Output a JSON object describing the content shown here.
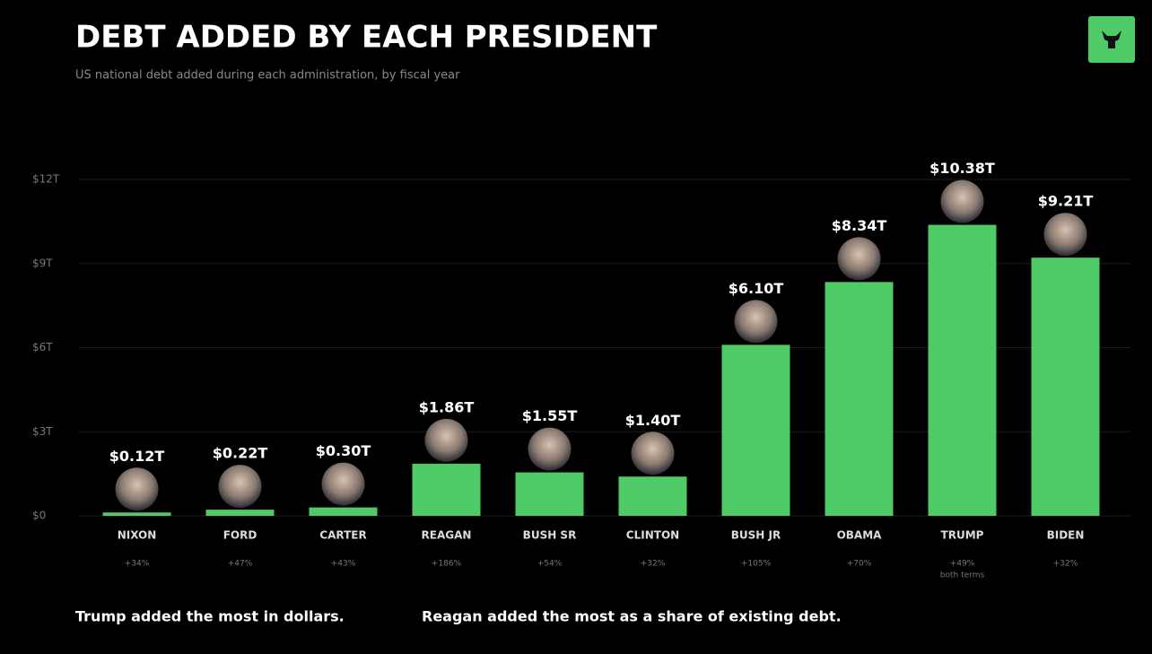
{
  "chart_data": {
    "type": "bar",
    "title": "DEBT ADDED BY EACH PRESIDENT",
    "subtitle": "US national debt added during each administration, by fiscal year",
    "categories": [
      "NIXON",
      "FORD",
      "CARTER",
      "REAGAN",
      "BUSH SR",
      "CLINTON",
      "BUSH JR",
      "OBAMA",
      "TRUMP",
      "BIDEN"
    ],
    "values": [
      0.12,
      0.22,
      0.3,
      1.86,
      1.55,
      1.4,
      6.1,
      8.34,
      10.38,
      9.21
    ],
    "value_labels": [
      "$0.12T",
      "$0.22T",
      "$0.30T",
      "$1.86T",
      "$1.55T",
      "$1.40T",
      "$6.10T",
      "$8.34T",
      "$10.38T",
      "$9.21T"
    ],
    "share_labels": [
      "+34%",
      "+47%",
      "+43%",
      "+186%",
      "+54%",
      "+32%",
      "+105%",
      "+70%",
      "+49%",
      "+32%"
    ],
    "share_note": {
      "category": "TRUMP",
      "text": "both terms"
    },
    "color": "#4ecb66",
    "ylim": [
      0,
      12
    ],
    "yticks": [
      {
        "value": 0,
        "label": "$0"
      },
      {
        "value": 3,
        "label": "$3T"
      },
      {
        "value": 6,
        "label": "$6T"
      },
      {
        "value": 9,
        "label": "$9T"
      },
      {
        "value": 12,
        "label": "$12T"
      }
    ],
    "grid": true,
    "footer": [
      "Trump added the most in dollars.",
      "Reagan added the most as a share of existing debt."
    ]
  }
}
